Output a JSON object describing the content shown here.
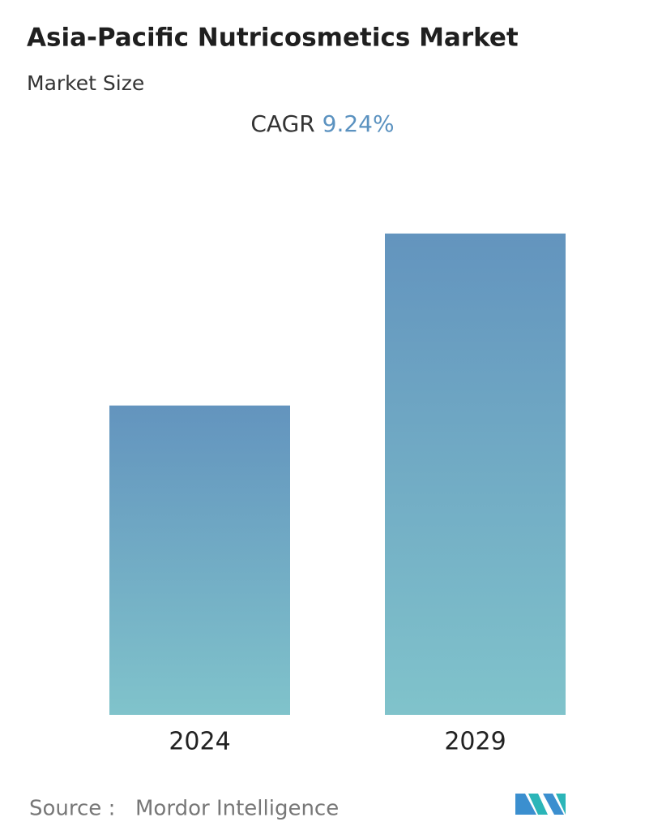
{
  "chart_data": {
    "type": "bar",
    "title": "Asia-Pacific Nutricosmetics Market",
    "subtitle": "Market Size",
    "cagr_label": "CAGR",
    "cagr": "9.24%",
    "categories": [
      "2024",
      "2029"
    ],
    "values": [
      1,
      1.556
    ],
    "ylim": [
      0,
      1.6
    ],
    "color_top": "#6394be",
    "color_bottom": "#80c3cb",
    "source_label": "Source :",
    "source": "Mordor Intelligence"
  }
}
